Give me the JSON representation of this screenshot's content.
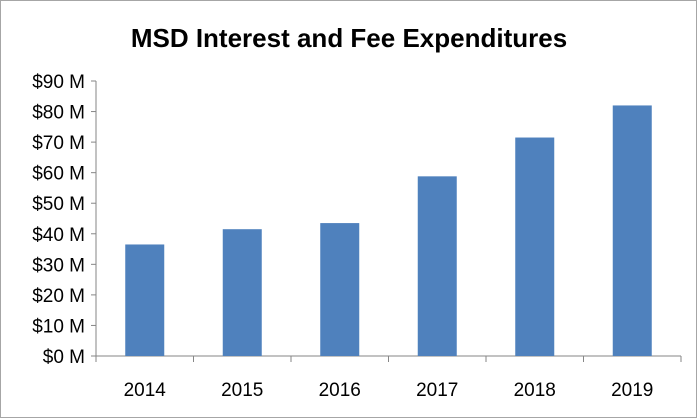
{
  "chart_data": {
    "type": "bar",
    "title": "MSD Interest and Fee Expenditures",
    "xlabel": "",
    "ylabel": "",
    "categories": [
      "2014",
      "2015",
      "2016",
      "2017",
      "2018",
      "2019"
    ],
    "values": [
      36.5,
      41.5,
      43.5,
      58.8,
      71.5,
      82
    ],
    "ylim": [
      0,
      90
    ],
    "ytick_step": 10,
    "ytick_labels": [
      "$0 M",
      "$10 M",
      "$20 M",
      "$30 M",
      "$40 M",
      "$50 M",
      "$60 M",
      "$70 M",
      "$80 M",
      "$90 M"
    ],
    "grid": false,
    "legend": "none",
    "bar_color": "#4f81bd",
    "axis_color": "#868686"
  }
}
